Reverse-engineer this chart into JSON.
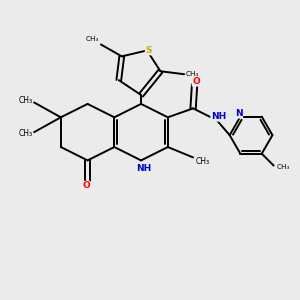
{
  "background_color": "#ebebeb",
  "bond_color": "#000000",
  "atom_colors": {
    "N": "#0000cc",
    "O": "#ff0000",
    "S": "#ccaa00",
    "C": "#000000"
  },
  "figsize": [
    3.0,
    3.0
  ],
  "dpi": 100,
  "xlim": [
    0,
    10
  ],
  "ylim": [
    0,
    10
  ]
}
